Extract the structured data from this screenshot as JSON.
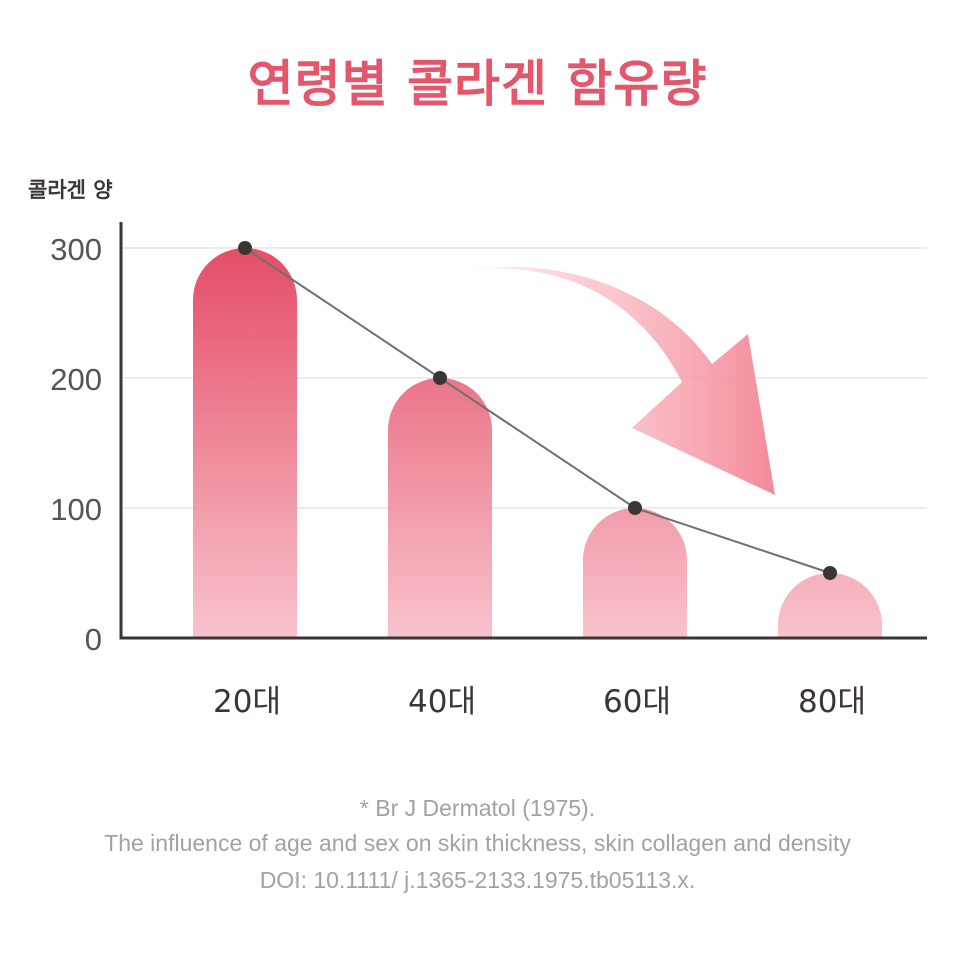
{
  "title": "연령별 콜라겐 함유량",
  "chart_data": {
    "type": "bar",
    "ylabel": "콜라겐 양",
    "ylim": [
      0,
      300
    ],
    "yticks": [
      0,
      100,
      200,
      300
    ],
    "grid": true,
    "categories": [
      "20대",
      "40대",
      "60대",
      "80대"
    ],
    "values": [
      300,
      200,
      100,
      50
    ],
    "overlay_line": true,
    "trend_arrow": "decreasing"
  },
  "colors": {
    "title": "#e4566c",
    "bar_top": "#e54d66",
    "bar_bottom": "#f8c3cd",
    "line": "#707070",
    "point": "#3b3536",
    "axis": "#3b3536",
    "grid": "#e6e6e6",
    "arrow": "#f48a9a"
  },
  "footnote": {
    "line1": "* Br J Dermatol (1975).",
    "line2": "The influence of age and sex on skin thickness, skin collagen and density",
    "line3": "DOI: 10.1111/ j.1365-2133.1975.tb05113.x."
  }
}
